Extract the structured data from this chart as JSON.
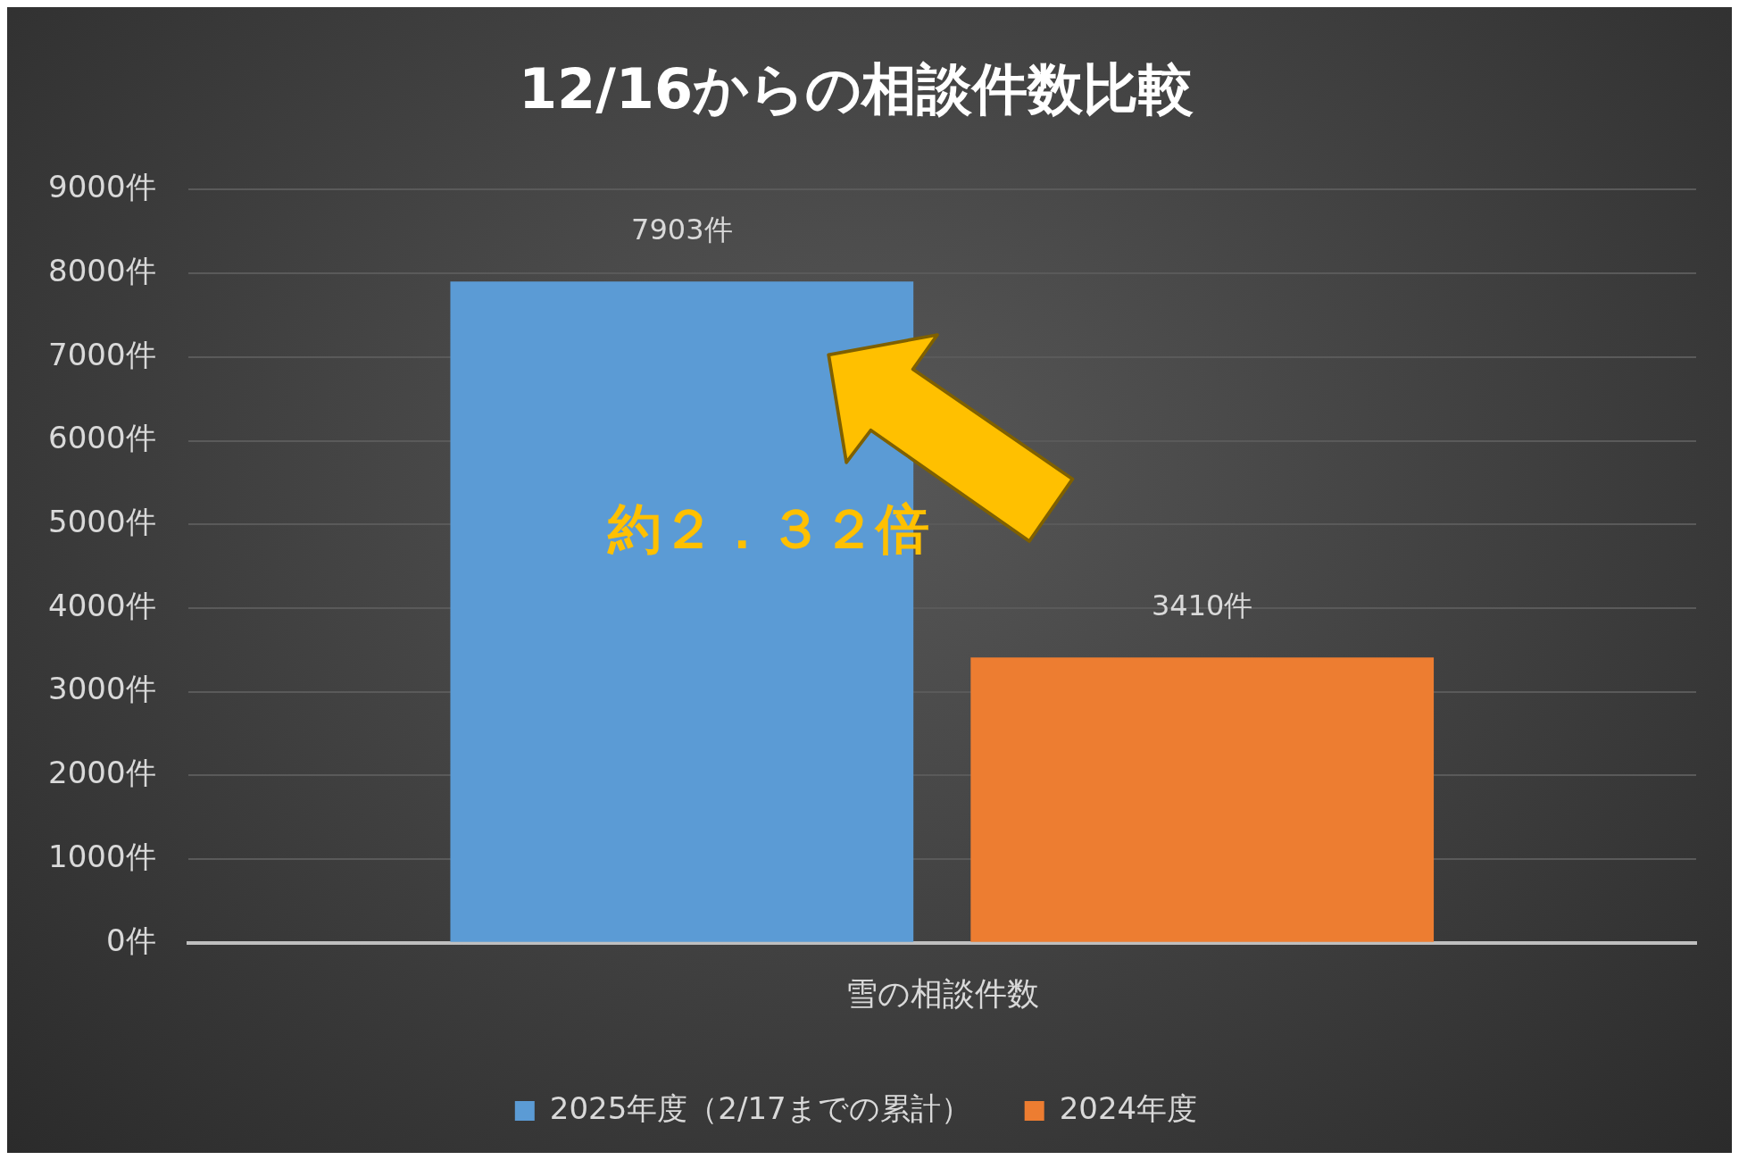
{
  "chart_data": {
    "type": "bar",
    "title": "12/16からの相談件数比較",
    "categories": [
      "雪の相談件数"
    ],
    "series": [
      {
        "name": "2025年度（2/17までの累計）",
        "color": "#5b9bd5",
        "values": [
          7903
        ],
        "value_labels": [
          "7903件"
        ]
      },
      {
        "name": "2024年度",
        "color": "#ed7d31",
        "values": [
          3410
        ],
        "value_labels": [
          "3410件"
        ]
      }
    ],
    "ylim": [
      0,
      9000
    ],
    "yticks": [
      {
        "value": 0,
        "label": "0件"
      },
      {
        "value": 1000,
        "label": "1000件"
      },
      {
        "value": 2000,
        "label": "2000件"
      },
      {
        "value": 3000,
        "label": "3000件"
      },
      {
        "value": 4000,
        "label": "4000件"
      },
      {
        "value": 5000,
        "label": "5000件"
      },
      {
        "value": 6000,
        "label": "6000件"
      },
      {
        "value": 7000,
        "label": "7000件"
      },
      {
        "value": 8000,
        "label": "8000件"
      },
      {
        "value": 9000,
        "label": "9000件"
      }
    ],
    "grid": "y",
    "legend": "bottom",
    "annotations": [
      "約２．３２倍"
    ]
  }
}
